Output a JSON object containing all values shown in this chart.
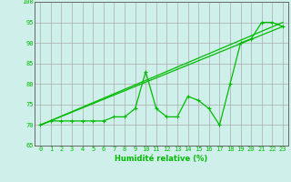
{
  "xlabel": "Humidité relative (%)",
  "bg_color": "#cff0ea",
  "grid_color": "#aaaaaa",
  "line_color": "#00bb00",
  "spine_color": "#666666",
  "xlim": [
    -0.5,
    23.5
  ],
  "ylim": [
    65,
    100
  ],
  "yticks": [
    65,
    70,
    75,
    80,
    85,
    90,
    95,
    100
  ],
  "xticks": [
    0,
    1,
    2,
    3,
    4,
    5,
    6,
    7,
    8,
    9,
    10,
    11,
    12,
    13,
    14,
    15,
    16,
    17,
    18,
    19,
    20,
    21,
    22,
    23
  ],
  "series1": [
    70,
    71,
    71,
    71,
    71,
    71,
    71,
    72,
    72,
    74,
    83,
    74,
    72,
    72,
    77,
    76,
    74,
    70,
    80,
    90,
    91,
    95,
    95,
    94
  ],
  "trend1_x": [
    0,
    23
  ],
  "trend1_y": [
    70,
    94
  ],
  "trend2_x": [
    0,
    23
  ],
  "trend2_y": [
    70,
    95
  ],
  "xlabel_fontsize": 6,
  "tick_fontsize": 5
}
